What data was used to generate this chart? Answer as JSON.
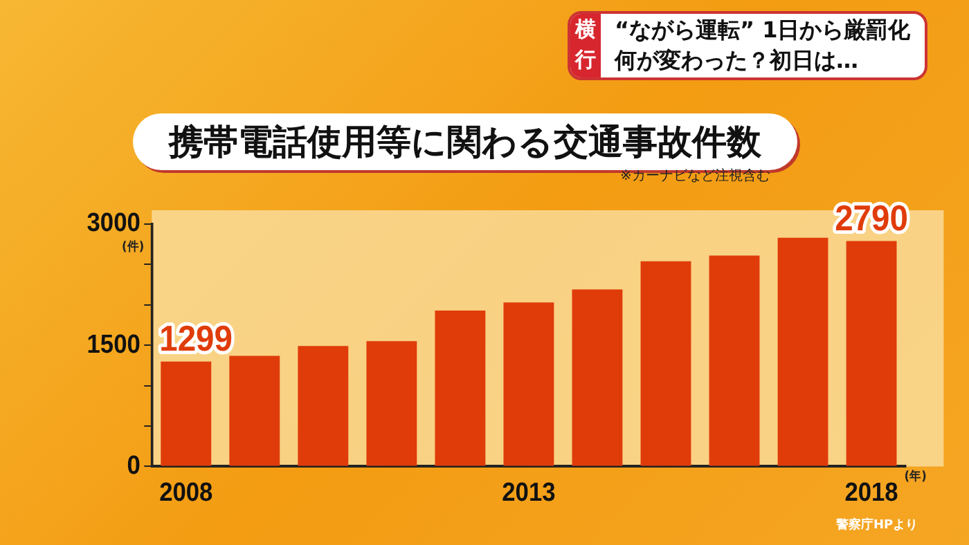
{
  "chart_data": {
    "type": "bar",
    "title": "携帯電話使用等に関わる交通事故件数",
    "categories": [
      "2008",
      null,
      null,
      null,
      null,
      "2013",
      null,
      null,
      null,
      null,
      "2018"
    ],
    "values": [
      1299,
      1370,
      1490,
      1550,
      1930,
      2030,
      2190,
      2540,
      2610,
      2830,
      2790
    ],
    "value_labels": [
      "1299",
      null,
      null,
      null,
      null,
      null,
      null,
      null,
      null,
      null,
      "2790"
    ],
    "color": "#e03c0a",
    "ylim": [
      0,
      3000
    ],
    "yticks": [
      0,
      {
        "value": 500,
        "label": null
      },
      {
        "value": 1000,
        "label": null
      },
      1500,
      {
        "value": 2000,
        "label": null
      },
      {
        "value": 2500,
        "label": null
      },
      3000
    ],
    "xlabel": "(年)",
    "ylabel": "(件)",
    "grid": false,
    "legend": false,
    "annotations": [
      "横行",
      "“ながら運転” 1日から厳罰化",
      "何が変わった？初日は…",
      "※カーナビなど注視含む",
      "警察庁HPより"
    ]
  }
}
